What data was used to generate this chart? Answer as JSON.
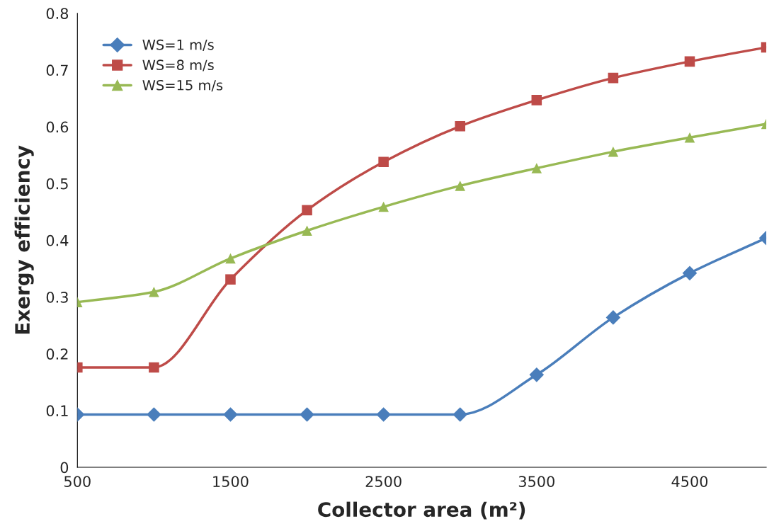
{
  "chart_data": {
    "type": "line",
    "xlabel": "Collector area (m²)",
    "ylabel": "Exergy efficiency",
    "x": [
      500,
      1000,
      1500,
      2000,
      2500,
      3000,
      3500,
      4000,
      4500,
      5000
    ],
    "series": [
      {
        "name": "WS=1 m/s",
        "color": "#4a7ebb",
        "marker": "diamond",
        "values": [
          0.093,
          0.093,
          0.093,
          0.093,
          0.093,
          0.093,
          0.163,
          0.264,
          0.342,
          0.404
        ]
      },
      {
        "name": "WS=8 m/s",
        "color": "#be4b48",
        "marker": "square",
        "values": [
          0.176,
          0.176,
          0.331,
          0.453,
          0.538,
          0.601,
          0.647,
          0.686,
          0.715,
          0.74
        ]
      },
      {
        "name": "WS=15 m/s",
        "color": "#98b954",
        "marker": "triangle",
        "values": [
          0.291,
          0.309,
          0.368,
          0.417,
          0.459,
          0.496,
          0.527,
          0.556,
          0.581,
          0.605
        ]
      }
    ],
    "xlim": [
      500,
      5000
    ],
    "xticks": [
      500,
      1500,
      2500,
      3500,
      4500
    ],
    "ylim": [
      0,
      0.8
    ],
    "yticks": [
      {
        "value": 0,
        "label": "0"
      },
      {
        "value": 0.1,
        "label": "0.1"
      },
      {
        "value": 0.2,
        "label": "0.2"
      },
      {
        "value": 0.3,
        "label": "0.3"
      },
      {
        "value": 0.4,
        "label": "0.4"
      },
      {
        "value": 0.5,
        "label": "0.5"
      },
      {
        "value": 0.6,
        "label": "0.6"
      },
      {
        "value": 0.7,
        "label": "0.7"
      },
      {
        "value": 0.8,
        "label": "0.8"
      }
    ],
    "grid": false,
    "legend": "top left",
    "line_style": "solid"
  }
}
